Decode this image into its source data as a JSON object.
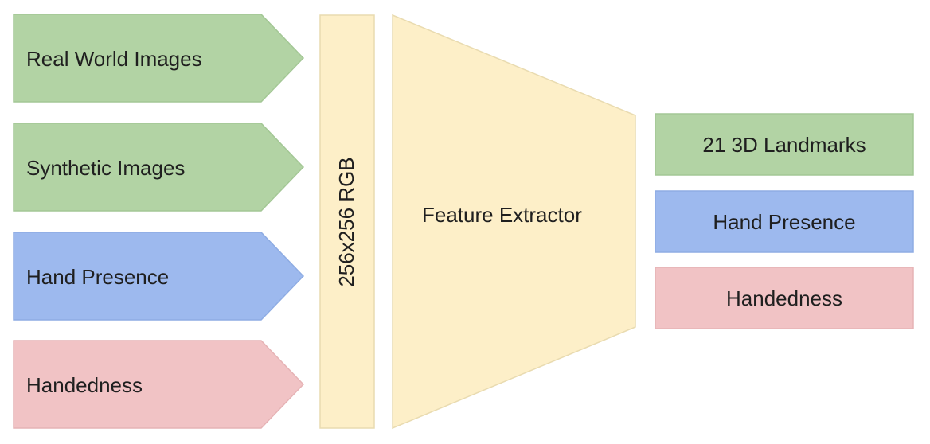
{
  "colors": {
    "green": "#b2d3a4",
    "green_border": "#a3c795",
    "blue": "#9db9ee",
    "blue_border": "#8eace3",
    "pink": "#f1c3c5",
    "pink_border": "#e6b3b5",
    "yellow": "#fdefc8",
    "yellow_border": "#e9dbb0"
  },
  "inputs": [
    {
      "label": "Real World Images",
      "color": "green"
    },
    {
      "label": "Synthetic Images",
      "color": "green"
    },
    {
      "label": "Hand Presence",
      "color": "blue"
    },
    {
      "label": "Handedness",
      "color": "pink"
    }
  ],
  "input_layer": {
    "label": "256x256 RGB"
  },
  "extractor": {
    "label": "Feature Extractor"
  },
  "outputs": [
    {
      "label": "21 3D Landmarks",
      "color": "green"
    },
    {
      "label": "Hand Presence",
      "color": "blue"
    },
    {
      "label": "Handedness",
      "color": "pink"
    }
  ]
}
